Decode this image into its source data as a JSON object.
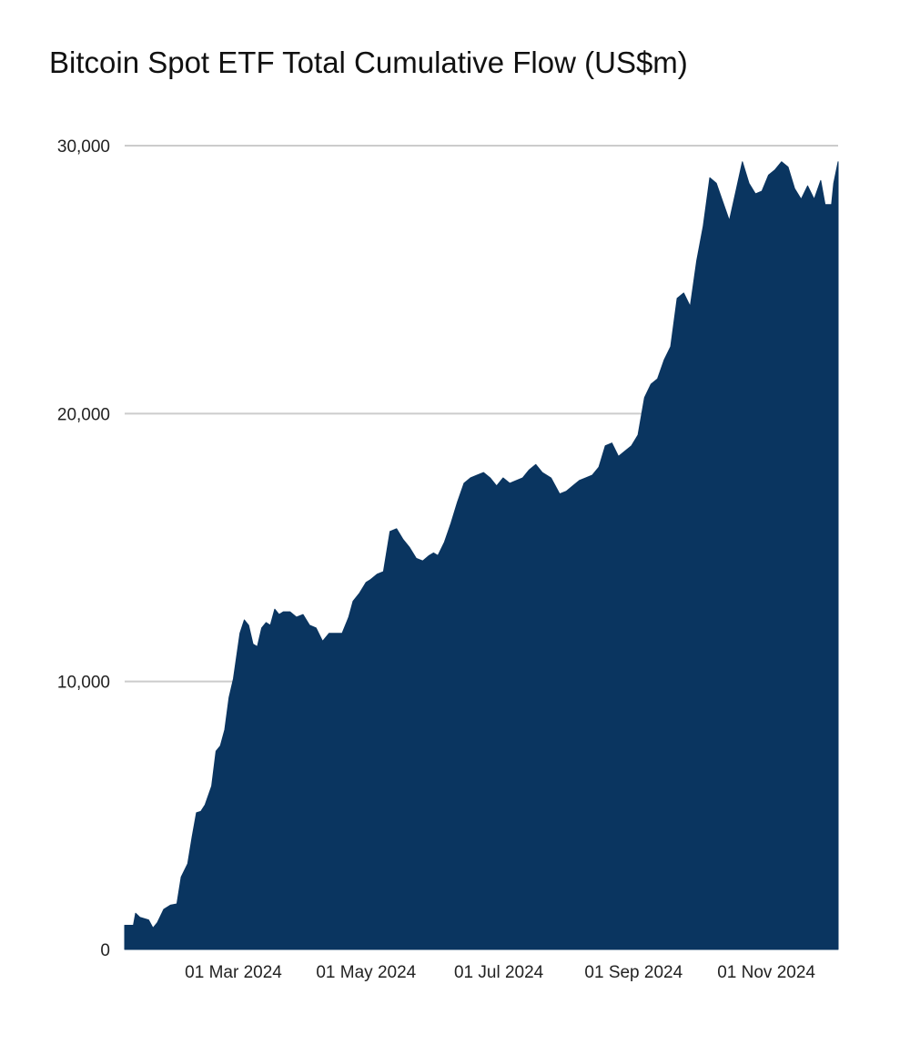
{
  "chart_data": {
    "type": "area",
    "title": "Bitcoin Spot ETF Total Cumulative Flow (US$m)",
    "xlabel": "",
    "ylabel": "",
    "ylim": [
      0,
      30000
    ],
    "x_range": [
      "2024-01-11",
      "2024-12-04"
    ],
    "y_ticks": [
      0,
      10000,
      20000,
      30000
    ],
    "y_tick_labels": [
      "0",
      "10,000",
      "20,000",
      "30,000"
    ],
    "x_ticks": [
      "2024-03-01",
      "2024-05-01",
      "2024-07-01",
      "2024-09-01",
      "2024-11-01"
    ],
    "x_tick_labels": [
      "01 Mar 2024",
      "01 May 2024",
      "01 Jul 2024",
      "01 Sep 2024",
      "01 Nov 2024"
    ],
    "grid": true,
    "colors": {
      "fill": "#0a3560",
      "grid": "#cccccc"
    },
    "series": [
      {
        "x": [
          "2024-01-11",
          "2024-01-15",
          "2024-01-16",
          "2024-01-18",
          "2024-01-22",
          "2024-01-24",
          "2024-01-26",
          "2024-01-29",
          "2024-02-01",
          "2024-02-04",
          "2024-02-06",
          "2024-02-09",
          "2024-02-11",
          "2024-02-13",
          "2024-02-15",
          "2024-02-17",
          "2024-02-20",
          "2024-02-22",
          "2024-02-24",
          "2024-02-26",
          "2024-02-28",
          "2024-03-01",
          "2024-03-04",
          "2024-03-06",
          "2024-03-08",
          "2024-03-10",
          "2024-03-12",
          "2024-03-14",
          "2024-03-16",
          "2024-03-18",
          "2024-03-20",
          "2024-03-22",
          "2024-03-24",
          "2024-03-27",
          "2024-03-30",
          "2024-04-02",
          "2024-04-05",
          "2024-04-08",
          "2024-04-11",
          "2024-04-14",
          "2024-04-17",
          "2024-04-20",
          "2024-04-23",
          "2024-04-25",
          "2024-04-28",
          "2024-05-01",
          "2024-05-03",
          "2024-05-06",
          "2024-05-09",
          "2024-05-12",
          "2024-05-15",
          "2024-05-18",
          "2024-05-21",
          "2024-05-24",
          "2024-05-27",
          "2024-05-30",
          "2024-06-01",
          "2024-06-03",
          "2024-06-06",
          "2024-06-09",
          "2024-06-12",
          "2024-06-15",
          "2024-06-18",
          "2024-06-21",
          "2024-06-24",
          "2024-06-27",
          "2024-06-30",
          "2024-07-03",
          "2024-07-06",
          "2024-07-09",
          "2024-07-12",
          "2024-07-15",
          "2024-07-18",
          "2024-07-21",
          "2024-07-25",
          "2024-07-29",
          "2024-08-01",
          "2024-08-04",
          "2024-08-07",
          "2024-08-10",
          "2024-08-13",
          "2024-08-16",
          "2024-08-19",
          "2024-08-22",
          "2024-08-25",
          "2024-08-28",
          "2024-08-31",
          "2024-09-03",
          "2024-09-06",
          "2024-09-09",
          "2024-09-12",
          "2024-09-15",
          "2024-09-18",
          "2024-09-21",
          "2024-09-24",
          "2024-09-27",
          "2024-09-30",
          "2024-10-03",
          "2024-10-06",
          "2024-10-09",
          "2024-10-12",
          "2024-10-15",
          "2024-10-18",
          "2024-10-21",
          "2024-10-24",
          "2024-10-27",
          "2024-10-30",
          "2024-11-02",
          "2024-11-05",
          "2024-11-08",
          "2024-11-11",
          "2024-11-14",
          "2024-11-17",
          "2024-11-20",
          "2024-11-23",
          "2024-11-26",
          "2024-11-28",
          "2024-12-01",
          "2024-12-02",
          "2024-12-04"
        ],
        "y": [
          900,
          900,
          1350,
          1200,
          1100,
          800,
          1000,
          1500,
          1650,
          1700,
          2700,
          3200,
          4200,
          5100,
          5150,
          5400,
          6100,
          7400,
          7600,
          8200,
          9400,
          10100,
          11800,
          12300,
          12100,
          11400,
          11300,
          12000,
          12200,
          12100,
          12700,
          12500,
          12600,
          12600,
          12400,
          12500,
          12100,
          12000,
          11500,
          11800,
          11800,
          11800,
          12400,
          13000,
          13300,
          13700,
          13800,
          14000,
          14100,
          15600,
          15700,
          15300,
          15000,
          14600,
          14500,
          14700,
          14800,
          14700,
          15200,
          15900,
          16700,
          17400,
          17600,
          17700,
          17800,
          17600,
          17300,
          17600,
          17400,
          17500,
          17600,
          17900,
          18100,
          17800,
          17600,
          17000,
          17100,
          17300,
          17500,
          17600,
          17700,
          18000,
          18800,
          18900,
          18400,
          18600,
          18800,
          19200,
          20600,
          21100,
          21300,
          22000,
          22500,
          24300,
          24500,
          24000,
          25700,
          27000,
          28800,
          28600,
          27900,
          27200,
          28300,
          29400,
          28600,
          28200,
          28300,
          28900,
          29100,
          29400,
          29200,
          28400,
          28000,
          28500,
          28000,
          28700,
          27800,
          27800,
          28600,
          29400
        ]
      }
    ]
  }
}
